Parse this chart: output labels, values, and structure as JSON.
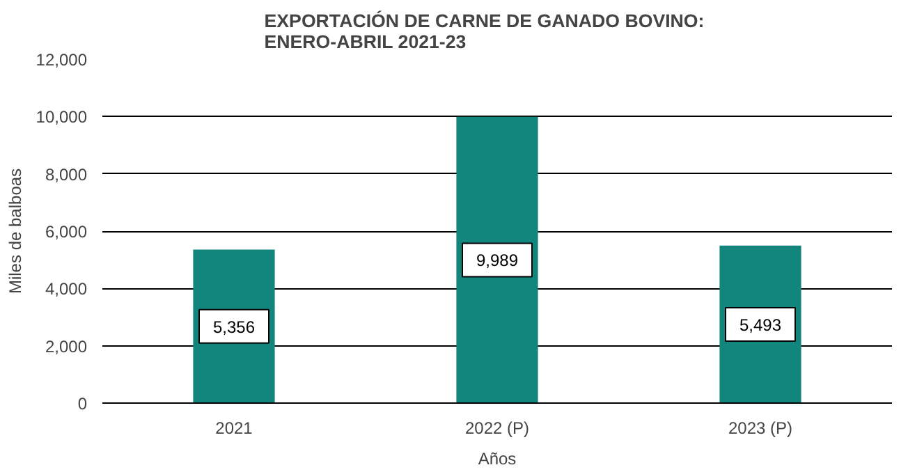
{
  "chart_data": {
    "type": "bar",
    "title": "EXPORTACIÓN  DE  CARNE  DE  GANADO  BOVINO:\nENERO-ABRIL  2021-23",
    "xlabel": "Años",
    "ylabel": "Miles de balboas",
    "categories": [
      "2021",
      "2022 (P)",
      "2023 (P)"
    ],
    "values": [
      5356,
      9989,
      5493
    ],
    "color": "#12857d",
    "ylim": [
      0,
      12000
    ],
    "yticks": [
      {
        "value": 0,
        "label": "0"
      },
      {
        "value": 2000,
        "label": "2,000"
      },
      {
        "value": 4000,
        "label": "4,000"
      },
      {
        "value": 6000,
        "label": "6,000"
      },
      {
        "value": 8000,
        "label": "8,000"
      },
      {
        "value": 10000,
        "label": "10,000"
      },
      {
        "value": 12000,
        "label": "12,000"
      }
    ],
    "grid": "y",
    "value_labels": [
      "5,356",
      "9,989",
      "5,493"
    ]
  }
}
